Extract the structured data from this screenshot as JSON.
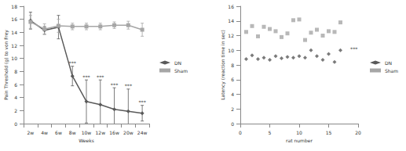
{
  "chart_data": [
    {
      "type": "line",
      "x_label": "Weeks",
      "y_label": "Pain Threshold (g) to von Frey",
      "categories": [
        "2w",
        "4w",
        "6w",
        "8w",
        "10w",
        "12w",
        "16w",
        "20w",
        "24w"
      ],
      "series": [
        {
          "name": "DN",
          "color": "#595959",
          "marker": "diamond",
          "values": [
            15.8,
            14.3,
            14.8,
            7.3,
            3.4,
            2.9,
            2.2,
            1.9,
            1.6
          ],
          "errors": [
            1.3,
            0.6,
            1.8,
            1.5,
            3.3,
            3.8,
            3.3,
            3.4,
            1.2
          ]
        },
        {
          "name": "Sham",
          "color": "#a6a6a6",
          "marker": "rect",
          "values": [
            15.6,
            14.5,
            15.0,
            14.9,
            14.9,
            14.9,
            15.1,
            15.1,
            14.4
          ],
          "errors": [
            1.0,
            0.8,
            1.0,
            0.5,
            0.5,
            0.5,
            0.5,
            0.6,
            1.0
          ]
        }
      ],
      "annotations": [
        {
          "text": "***",
          "x": "8w"
        },
        {
          "text": "***",
          "x": "10w"
        },
        {
          "text": "***",
          "x": "12w"
        },
        {
          "text": "***",
          "x": "16w"
        },
        {
          "text": "***",
          "x": "20w"
        },
        {
          "text": "***",
          "x": "24w"
        }
      ],
      "ylim": [
        0,
        18
      ],
      "yticks": [
        0,
        2,
        4,
        6,
        8,
        10,
        12,
        14,
        16,
        18
      ],
      "grid": false,
      "legend": "right"
    },
    {
      "type": "scatter",
      "x_label": "rat number",
      "y_label": "Latency (reaction time in sec)",
      "series": [
        {
          "name": "DN",
          "color": "#595959",
          "marker": "diamond",
          "x": [
            1,
            2,
            3,
            4,
            5,
            6,
            7,
            8,
            9,
            10,
            11,
            12,
            13,
            14,
            15,
            16,
            17
          ],
          "values": [
            8.8,
            9.3,
            8.8,
            9.0,
            8.7,
            9.2,
            8.9,
            9.1,
            9.0,
            9.2,
            9.0,
            10.0,
            9.2,
            8.7,
            9.5,
            8.4,
            10.0
          ]
        },
        {
          "name": "Sham",
          "color": "#a6a6a6",
          "marker": "rect",
          "x": [
            1,
            2,
            3,
            4,
            5,
            6,
            7,
            8,
            9,
            10,
            11,
            12,
            13,
            14,
            15,
            16,
            17
          ],
          "values": [
            12.5,
            13.3,
            11.9,
            13.2,
            12.9,
            12.6,
            11.8,
            12.3,
            14.1,
            14.2,
            11.4,
            12.4,
            12.8,
            12.0,
            12.6,
            12.5,
            13.8
          ]
        }
      ],
      "annotations": [
        {
          "text": "***",
          "x": 19.3,
          "y": 10.2
        }
      ],
      "xlim": [
        0,
        20
      ],
      "xticks": [
        0,
        5,
        10,
        15,
        20
      ],
      "ylim": [
        0,
        16
      ],
      "yticks": [
        0,
        2,
        4,
        6,
        8,
        10,
        12,
        14,
        16
      ],
      "grid": false,
      "legend": "right"
    }
  ]
}
